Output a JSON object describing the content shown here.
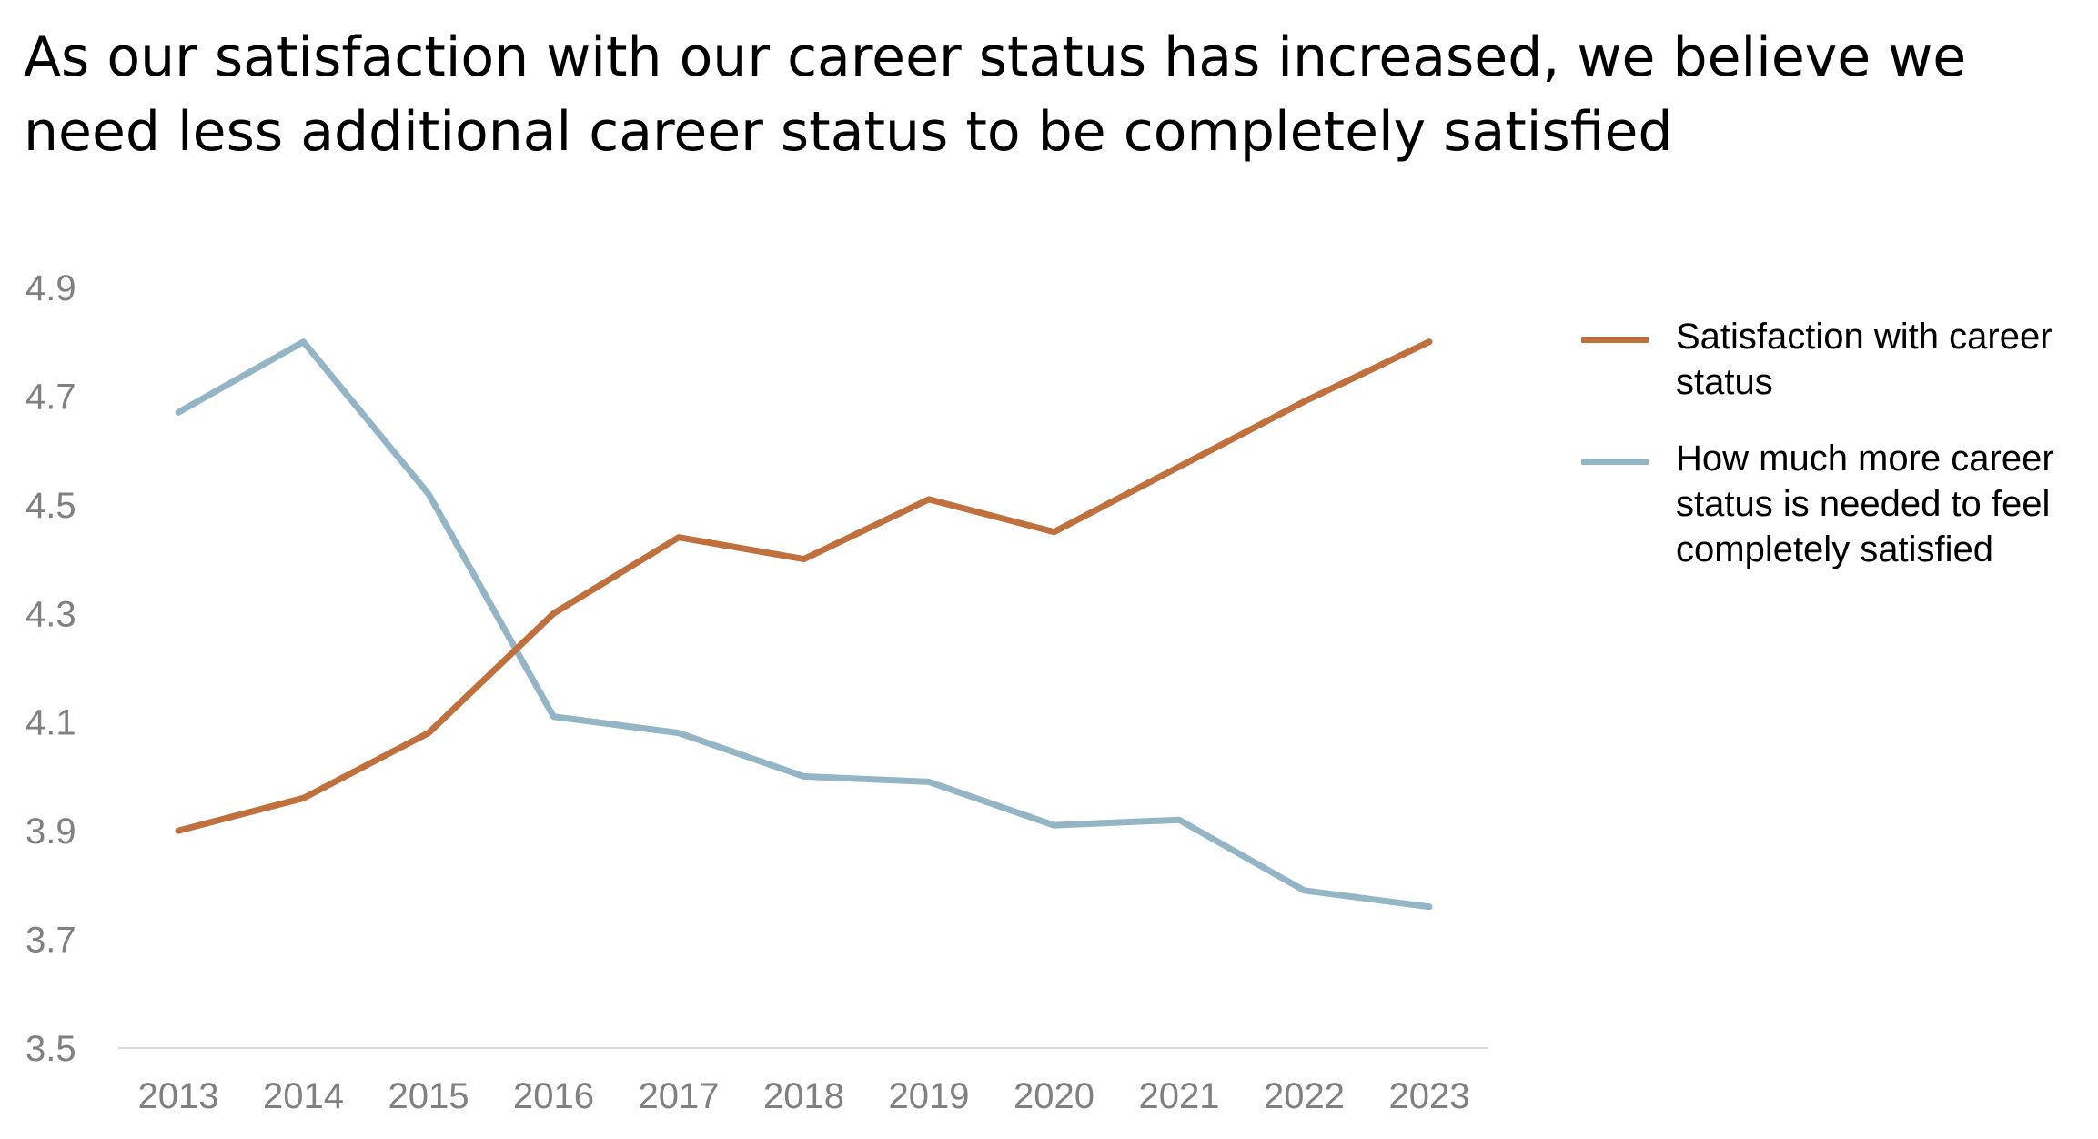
{
  "chart_data": {
    "type": "line",
    "title": "As our satisfaction with our career status has increased, we believe we need less additional career status to be completely satisfied",
    "title_lines": [
      "As our satisfaction with our career status has increased, we believe we",
      "need less additional career status to be completely satisfied"
    ],
    "categories": [
      "2013",
      "2014",
      "2015",
      "2016",
      "2017",
      "2018",
      "2019",
      "2020",
      "2021",
      "2022",
      "2023"
    ],
    "series": [
      {
        "name": "Satisfaction with career status",
        "color": "#C0703C",
        "values": [
          3.9,
          3.96,
          4.08,
          4.3,
          4.44,
          4.4,
          4.51,
          4.45,
          4.57,
          4.69,
          4.8
        ]
      },
      {
        "name": "How much more career status is needed to feel completely satisfied",
        "color": "#94B5C5",
        "values": [
          4.67,
          4.8,
          4.52,
          4.11,
          4.08,
          4.0,
          3.99,
          3.91,
          3.92,
          3.79,
          3.76
        ]
      }
    ],
    "yticks": [
      "4.9",
      "4.7",
      "4.5",
      "4.3",
      "4.1",
      "3.9",
      "3.7",
      "3.5"
    ],
    "ylim": [
      3.5,
      4.9
    ],
    "xlabel": "",
    "ylabel": "",
    "grid": false,
    "legend_position": "right"
  }
}
